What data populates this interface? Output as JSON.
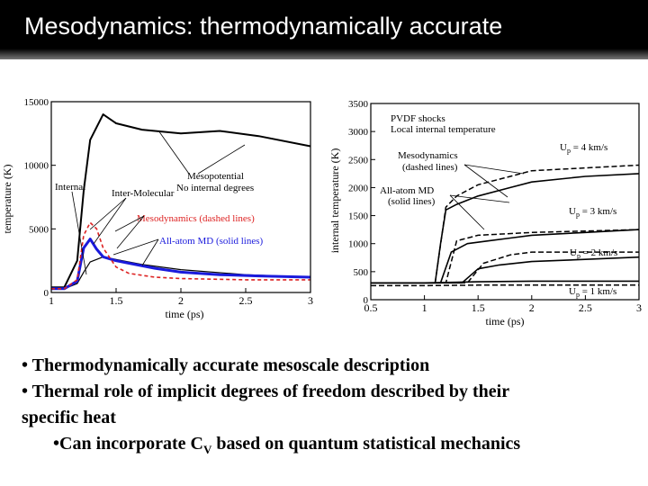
{
  "slide": {
    "title": "Mesodynamics: thermodynamically accurate",
    "bullets": [
      "• Thermodynamically accurate mesoscale description",
      "• Thermal role of implicit degrees of freedom described by their",
      "specific heat"
    ],
    "bullet4": {
      "prefix": "•Can incorporate C",
      "sub": "V",
      "suffix": " based on quantum statistical mechanics"
    }
  },
  "colors": {
    "title_bg": "#000000",
    "title_text": "#ffffff",
    "md_series": "#1a1adc",
    "meso_series": "#dd2222"
  },
  "chart_data": [
    {
      "type": "line",
      "ylabel": "temperature (K)",
      "xlabel": "time (ps)",
      "xlim": [
        1,
        3
      ],
      "ylim": [
        0,
        15000
      ],
      "x_ticks": [
        "1",
        "1.5",
        "2",
        "2.5",
        "3"
      ],
      "y_ticks": [
        "0",
        "5000",
        "10000",
        "15000"
      ],
      "annotations": [
        "Internal",
        "Inter-Molecular",
        "Mesopotential",
        "No internal degrees",
        "Mesodynamics (dashed lines)",
        "All-atom MD (solid lines)"
      ],
      "series": [
        {
          "name": "Mesopotential",
          "x": [
            1.0,
            1.1,
            1.2,
            1.25,
            1.3,
            1.4,
            1.5,
            1.7,
            2.0,
            2.3,
            2.6,
            3.0
          ],
          "y": [
            400,
            400,
            2500,
            8000,
            12000,
            14000,
            13300,
            12800,
            12500,
            12700,
            12300,
            11500
          ]
        },
        {
          "name": "Internal",
          "x": [
            1.0,
            1.1,
            1.2,
            1.25,
            1.3,
            1.4,
            1.5,
            1.7,
            2.0,
            2.5,
            3.0
          ],
          "y": [
            250,
            300,
            700,
            1600,
            2400,
            2800,
            2600,
            2200,
            1800,
            1400,
            1200
          ]
        },
        {
          "name": "All-atom MD",
          "x": [
            1.0,
            1.1,
            1.2,
            1.25,
            1.3,
            1.35,
            1.4,
            1.5,
            1.6,
            1.8,
            2.0,
            2.3,
            2.6,
            3.0
          ],
          "y": [
            300,
            300,
            900,
            3500,
            4200,
            3400,
            2800,
            2500,
            2300,
            1900,
            1600,
            1400,
            1300,
            1200
          ]
        },
        {
          "name": "Mesodynamics",
          "x": [
            1.0,
            1.1,
            1.2,
            1.25,
            1.3,
            1.35,
            1.4,
            1.5,
            1.6,
            1.8,
            2.0,
            2.5,
            3.0
          ],
          "y": [
            300,
            300,
            1000,
            4500,
            5500,
            5000,
            3500,
            2000,
            1500,
            1200,
            1100,
            1000,
            1000
          ]
        }
      ]
    },
    {
      "type": "line",
      "ylabel": "internal temperature (K)",
      "xlabel": "time (ps)",
      "xlim": [
        0.5,
        3
      ],
      "ylim": [
        0,
        3500
      ],
      "x_ticks": [
        "0.5",
        "1",
        "1.5",
        "2",
        "2.5",
        "3"
      ],
      "y_ticks": [
        "0",
        "500",
        "1000",
        "1500",
        "2000",
        "2500",
        "3000",
        "3500"
      ],
      "annotations": [
        "PVDF shocks",
        "Local internal temperature",
        "Mesodynamics",
        "(dashed lines)",
        "All-atom MD",
        "(solid lines)"
      ],
      "velocity_labels": [
        {
          "main": "U",
          "sub": "p",
          "value": " = 4 km/s"
        },
        {
          "main": "U",
          "sub": "p",
          "value": " = 3 km/s"
        },
        {
          "main": "U",
          "sub": "p",
          "value": " = 2 km/s"
        },
        {
          "main": "U",
          "sub": "p",
          "value": " = 1 km/s"
        }
      ],
      "series": [
        {
          "name": "Up = 4 km/s MD",
          "x": [
            0.5,
            1.1,
            1.15,
            1.2,
            1.3,
            1.5,
            1.8,
            2.0,
            2.5,
            3.0
          ],
          "y": [
            300,
            300,
            1000,
            1600,
            1700,
            1850,
            2000,
            2100,
            2200,
            2250
          ]
        },
        {
          "name": "Up = 4 km/s meso",
          "x": [
            0.5,
            1.1,
            1.2,
            1.3,
            1.5,
            1.8,
            2.0,
            2.5,
            3.0
          ],
          "y": [
            300,
            300,
            1650,
            1850,
            2050,
            2200,
            2300,
            2350,
            2400
          ]
        },
        {
          "name": "Up = 3 km/s MD",
          "x": [
            0.5,
            1.15,
            1.25,
            1.4,
            1.6,
            1.8,
            2.0,
            2.5,
            3.0
          ],
          "y": [
            300,
            300,
            850,
            1000,
            1050,
            1100,
            1150,
            1200,
            1250
          ]
        },
        {
          "name": "Up = 3 km/s meso",
          "x": [
            0.5,
            1.2,
            1.3,
            1.5,
            2.0,
            3.0
          ],
          "y": [
            300,
            300,
            1050,
            1150,
            1200,
            1250
          ]
        },
        {
          "name": "Up = 2 km/s MD",
          "x": [
            0.5,
            1.35,
            1.5,
            1.7,
            2.0,
            2.5,
            3.0
          ],
          "y": [
            300,
            300,
            550,
            620,
            680,
            720,
            760
          ]
        },
        {
          "name": "Up = 2 km/s meso",
          "x": [
            0.5,
            1.4,
            1.55,
            1.8,
            2.0,
            2.5,
            3.0
          ],
          "y": [
            300,
            300,
            650,
            800,
            850,
            850,
            850
          ]
        },
        {
          "name": "Up = 1 km/s MD",
          "x": [
            0.5,
            1.0,
            1.5,
            2.0,
            2.5,
            3.0
          ],
          "y": [
            300,
            300,
            320,
            330,
            330,
            330
          ]
        },
        {
          "name": "Up = 1 km/s meso",
          "x": [
            0.5,
            1.0,
            1.5,
            2.0,
            2.5,
            3.0
          ],
          "y": [
            250,
            250,
            260,
            260,
            260,
            260
          ]
        }
      ]
    }
  ]
}
